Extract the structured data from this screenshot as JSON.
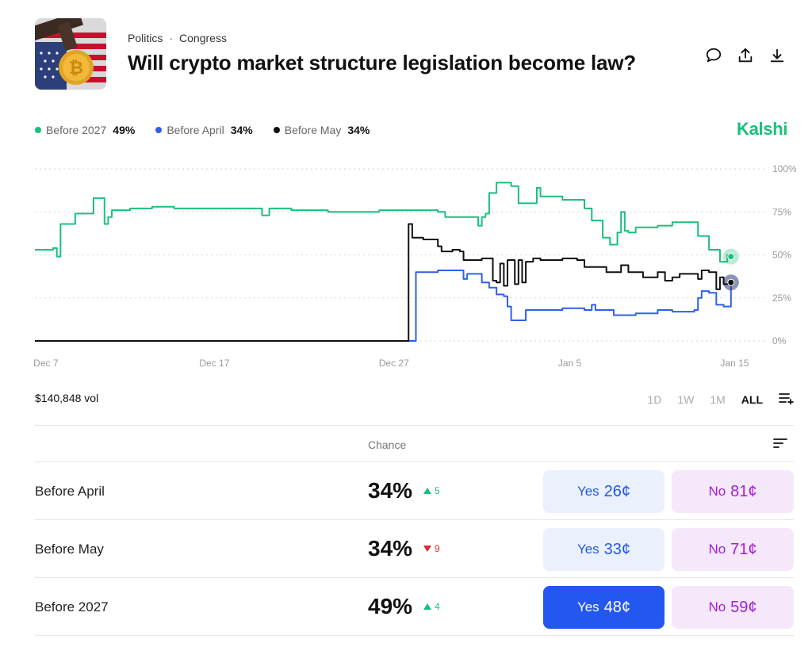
{
  "header": {
    "category": "Politics",
    "subcategory": "Congress",
    "title": "Will crypto market structure legislation become law?",
    "icons": [
      "comment-icon",
      "share-icon",
      "download-icon"
    ]
  },
  "legend": [
    {
      "name": "Before 2027",
      "value": "49%",
      "color": "#1bbf7c"
    },
    {
      "name": "Before April",
      "value": "34%",
      "color": "#2f5ff0"
    },
    {
      "name": "Before May",
      "value": "34%",
      "color": "#111111"
    }
  ],
  "brand": "Kalshi",
  "chart_data": {
    "type": "line",
    "x_ticks": [
      "Dec 7",
      "Dec 17",
      "Dec 27",
      "Jan 5",
      "Jan 15"
    ],
    "y_ticks": [
      "100%",
      "75%",
      "50%",
      "25%",
      "0%"
    ],
    "ylim": [
      0,
      100
    ],
    "grid": true,
    "series": [
      {
        "name": "Before 2027",
        "color": "#1bbf7c",
        "points": [
          [
            0,
            53
          ],
          [
            2.5,
            54
          ],
          [
            3,
            49
          ],
          [
            3.5,
            68
          ],
          [
            4.5,
            68
          ],
          [
            5.5,
            74
          ],
          [
            7,
            74
          ],
          [
            8,
            83
          ],
          [
            9,
            83
          ],
          [
            9.5,
            68
          ],
          [
            10,
            72
          ],
          [
            10.5,
            76
          ],
          [
            13,
            77
          ],
          [
            16,
            78
          ],
          [
            19,
            77
          ],
          [
            25,
            77
          ],
          [
            30,
            77
          ],
          [
            31,
            73
          ],
          [
            32,
            77
          ],
          [
            35,
            76
          ],
          [
            40,
            75
          ],
          [
            45,
            75
          ],
          [
            47,
            76
          ],
          [
            52,
            76
          ],
          [
            55,
            75
          ],
          [
            56,
            72
          ],
          [
            57,
            72
          ],
          [
            59.5,
            72
          ],
          [
            60.5,
            67
          ],
          [
            61,
            72
          ],
          [
            61.5,
            74
          ],
          [
            62,
            86
          ],
          [
            63,
            92
          ],
          [
            65,
            90
          ],
          [
            66,
            80
          ],
          [
            68,
            80
          ],
          [
            68.5,
            89
          ],
          [
            69,
            84
          ],
          [
            72,
            82
          ],
          [
            75,
            77
          ],
          [
            76,
            70
          ],
          [
            77.5,
            60
          ],
          [
            78.5,
            56
          ],
          [
            79.5,
            63
          ],
          [
            80,
            75
          ],
          [
            80.5,
            64
          ],
          [
            81,
            63
          ],
          [
            82,
            66
          ],
          [
            85,
            67
          ],
          [
            87,
            69
          ],
          [
            90,
            69
          ],
          [
            90.5,
            61
          ],
          [
            92,
            53
          ],
          [
            93.5,
            46
          ],
          [
            94.5,
            50
          ],
          [
            95,
            49
          ]
        ]
      },
      {
        "name": "Before April",
        "color": "#2f5ff0",
        "points": [
          [
            0,
            0
          ],
          [
            51,
            0
          ],
          [
            51.5,
            0
          ],
          [
            52,
            40
          ],
          [
            55,
            41
          ],
          [
            58,
            41
          ],
          [
            58.5,
            36
          ],
          [
            59,
            39
          ],
          [
            61,
            34
          ],
          [
            62,
            31
          ],
          [
            63,
            27
          ],
          [
            64,
            26
          ],
          [
            64.5,
            20
          ],
          [
            65,
            12
          ],
          [
            66,
            12
          ],
          [
            67,
            18
          ],
          [
            72,
            19
          ],
          [
            75,
            18
          ],
          [
            76,
            21
          ],
          [
            76.5,
            18
          ],
          [
            78,
            18
          ],
          [
            79,
            15
          ],
          [
            82,
            16
          ],
          [
            85,
            18
          ],
          [
            87,
            17
          ],
          [
            90,
            18
          ],
          [
            90.5,
            25
          ],
          [
            91,
            29
          ],
          [
            92,
            28
          ],
          [
            93,
            21
          ],
          [
            94,
            20
          ],
          [
            95,
            34
          ]
        ]
      },
      {
        "name": "Before May",
        "color": "#111111",
        "points": [
          [
            0,
            0
          ],
          [
            50.5,
            0
          ],
          [
            51,
            68
          ],
          [
            51.5,
            60
          ],
          [
            53,
            59
          ],
          [
            55,
            55
          ],
          [
            55.5,
            52
          ],
          [
            57,
            53
          ],
          [
            58,
            52
          ],
          [
            58.5,
            47
          ],
          [
            61,
            48
          ],
          [
            62,
            48
          ],
          [
            62.5,
            35
          ],
          [
            63,
            34
          ],
          [
            63.5,
            45
          ],
          [
            64,
            32
          ],
          [
            64.5,
            47
          ],
          [
            65,
            47
          ],
          [
            65.5,
            33
          ],
          [
            66,
            47
          ],
          [
            66.5,
            34
          ],
          [
            67,
            46
          ],
          [
            68,
            48
          ],
          [
            69,
            47
          ],
          [
            72,
            48
          ],
          [
            74,
            47
          ],
          [
            75,
            43
          ],
          [
            78,
            40
          ],
          [
            80,
            44
          ],
          [
            81,
            40
          ],
          [
            83,
            37
          ],
          [
            85,
            40
          ],
          [
            86,
            35
          ],
          [
            87,
            37
          ],
          [
            88,
            39
          ],
          [
            90,
            39
          ],
          [
            90.5,
            36
          ],
          [
            91,
            41
          ],
          [
            92,
            40
          ],
          [
            93,
            30
          ],
          [
            93.5,
            37
          ],
          [
            94,
            33
          ],
          [
            95,
            34
          ]
        ]
      }
    ]
  },
  "volume": "$140,848 vol",
  "ranges": {
    "d1": "1D",
    "w1": "1W",
    "m1": "1M",
    "all": "ALL"
  },
  "table": {
    "chance_label": "Chance",
    "rows": [
      {
        "name": "Before April",
        "chance": "34%",
        "delta": "5",
        "direction": "up",
        "yes_label": "Yes",
        "yes_price": "26¢",
        "no_label": "No",
        "no_price": "81¢"
      },
      {
        "name": "Before May",
        "chance": "34%",
        "delta": "9",
        "direction": "down",
        "yes_label": "Yes",
        "yes_price": "33¢",
        "no_label": "No",
        "no_price": "71¢"
      },
      {
        "name": "Before 2027",
        "chance": "49%",
        "delta": "4",
        "direction": "up",
        "yes_label": "Yes",
        "yes_price": "48¢",
        "no_label": "No",
        "no_price": "59¢"
      }
    ]
  }
}
